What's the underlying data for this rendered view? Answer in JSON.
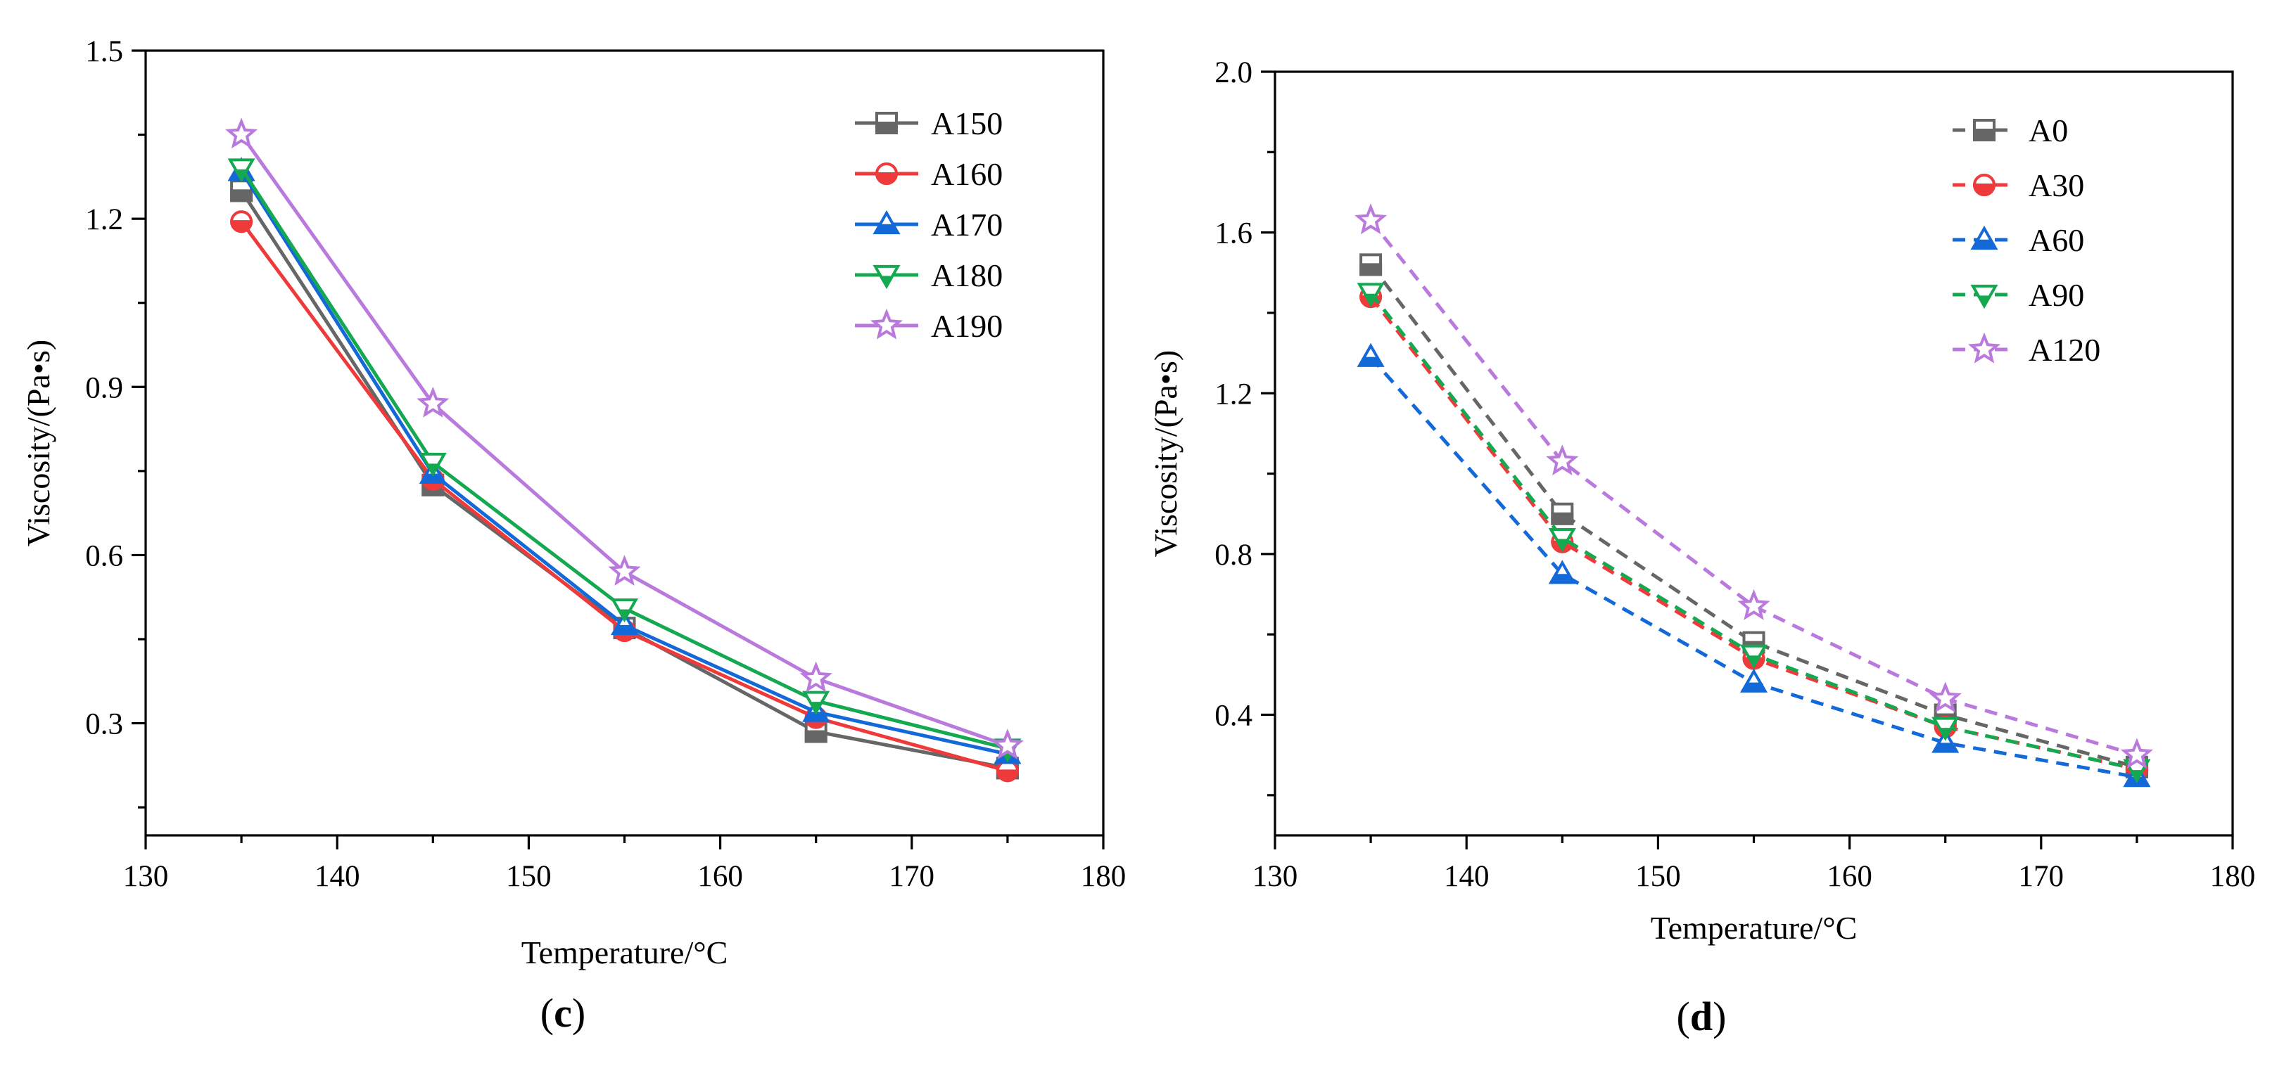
{
  "chart_data": [
    {
      "type": "line",
      "panel_label": "c",
      "xlabel": "Temperature/°C",
      "ylabel": "Viscosity/(Pa•s)",
      "xlim": [
        130,
        180
      ],
      "ylim": [
        0.1,
        1.5
      ],
      "xticks": [
        "130",
        "140",
        "150",
        "160",
        "170",
        "180"
      ],
      "yticks": [
        "0.3",
        "0.6",
        "0.9",
        "1.2",
        "1.5"
      ],
      "x": [
        135,
        145,
        155,
        165,
        175
      ],
      "line_style": "solid",
      "legend_position": "top-right",
      "series": [
        {
          "name": "A150",
          "color": "#666666",
          "marker": "square",
          "values": [
            1.25,
            0.725,
            0.47,
            0.285,
            0.22
          ]
        },
        {
          "name": "A160",
          "color": "#ee3a3a",
          "marker": "circle",
          "values": [
            1.195,
            0.735,
            0.465,
            0.31,
            0.215
          ]
        },
        {
          "name": "A170",
          "color": "#1469d8",
          "marker": "triangle-up",
          "values": [
            1.285,
            0.745,
            0.475,
            0.32,
            0.245
          ]
        },
        {
          "name": "A180",
          "color": "#14a851",
          "marker": "triangle-down",
          "values": [
            1.29,
            0.765,
            0.505,
            0.34,
            0.255
          ]
        },
        {
          "name": "A190",
          "color": "#b979dd",
          "marker": "star",
          "values": [
            1.35,
            0.87,
            0.57,
            0.38,
            0.26
          ]
        }
      ]
    },
    {
      "type": "line",
      "panel_label": "d",
      "xlabel": "Temperature/°C",
      "ylabel": "Viscosity/(Pa•s)",
      "xlim": [
        130,
        180
      ],
      "ylim": [
        0.1,
        2.0
      ],
      "xticks": [
        "130",
        "140",
        "150",
        "160",
        "170",
        "180"
      ],
      "yticks": [
        "0.4",
        "0.8",
        "1.2",
        "1.6",
        "2.0"
      ],
      "x": [
        135,
        145,
        155,
        165,
        175
      ],
      "line_style": "dashed",
      "legend_position": "top-right",
      "series": [
        {
          "name": "A0",
          "color": "#666666",
          "marker": "square",
          "values": [
            1.52,
            0.9,
            0.58,
            0.4,
            0.27
          ]
        },
        {
          "name": "A30",
          "color": "#ee3a3a",
          "marker": "circle",
          "values": [
            1.44,
            0.83,
            0.54,
            0.37,
            0.265
          ]
        },
        {
          "name": "A60",
          "color": "#1469d8",
          "marker": "triangle-up",
          "values": [
            1.29,
            0.75,
            0.48,
            0.33,
            0.245
          ]
        },
        {
          "name": "A90",
          "color": "#14a851",
          "marker": "triangle-down",
          "values": [
            1.45,
            0.84,
            0.55,
            0.37,
            0.265
          ]
        },
        {
          "name": "A120",
          "color": "#b979dd",
          "marker": "star",
          "values": [
            1.63,
            1.03,
            0.67,
            0.44,
            0.3
          ]
        }
      ]
    }
  ]
}
